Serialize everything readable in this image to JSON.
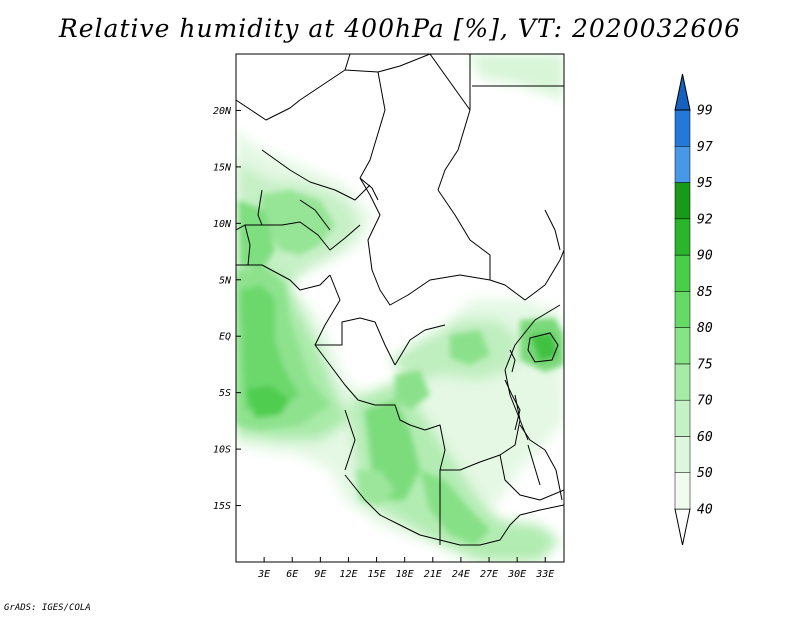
{
  "title": "Relative humidity at 400hPa [%], VT: 2020032606",
  "credit": "GrADS: IGES/COLA",
  "map": {
    "lon_range": [
      0,
      35
    ],
    "lat_range": [
      -20,
      25
    ],
    "lat_ticks": [
      {
        "lat": 20,
        "label": "20N"
      },
      {
        "lat": 15,
        "label": "15N"
      },
      {
        "lat": 10,
        "label": "10N"
      },
      {
        "lat": 5,
        "label": "5N"
      },
      {
        "lat": 0,
        "label": "EQ"
      },
      {
        "lat": -5,
        "label": "5S"
      },
      {
        "lat": -10,
        "label": "10S"
      },
      {
        "lat": -15,
        "label": "15S"
      }
    ],
    "lon_ticks": [
      {
        "lon": 3,
        "label": "3E"
      },
      {
        "lon": 6,
        "label": "6E"
      },
      {
        "lon": 9,
        "label": "9E"
      },
      {
        "lon": 12,
        "label": "12E"
      },
      {
        "lon": 15,
        "label": "15E"
      },
      {
        "lon": 18,
        "label": "18E"
      },
      {
        "lon": 21,
        "label": "21E"
      },
      {
        "lon": 24,
        "label": "24E"
      },
      {
        "lon": 27,
        "label": "27E"
      },
      {
        "lon": 30,
        "label": "30E"
      },
      {
        "lon": 33,
        "label": "33E"
      }
    ]
  },
  "colorbar": {
    "levels": [
      {
        "label": "40",
        "color": "#f0fcf0"
      },
      {
        "label": "50",
        "color": "#dcf7dc"
      },
      {
        "label": "60",
        "color": "#c4f2c4"
      },
      {
        "label": "70",
        "color": "#a6eba6"
      },
      {
        "label": "75",
        "color": "#86e386"
      },
      {
        "label": "80",
        "color": "#66da66"
      },
      {
        "label": "85",
        "color": "#48ce48"
      },
      {
        "label": "90",
        "color": "#2bb52b"
      },
      {
        "label": "92",
        "color": "#179a17"
      },
      {
        "label": "95",
        "color": "#4898e8"
      },
      {
        "label": "97",
        "color": "#2478d8"
      },
      {
        "label": "99",
        "color": "#1660c0"
      }
    ],
    "below_color": "#ffffff",
    "above_color": "#1660c0"
  }
}
